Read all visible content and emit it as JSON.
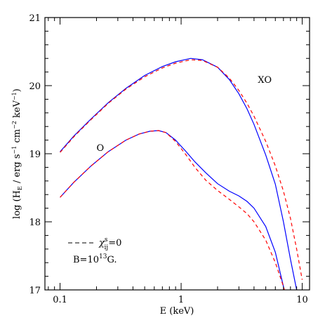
{
  "chart_data": {
    "type": "line",
    "xlabel": "E (keV)",
    "ylabel": {
      "base": "log (H",
      "sub": "E",
      "rest": " / erg s",
      "exp1": "−1",
      "mid": " cm",
      "exp2": "−2",
      "mid2": " keV",
      "exp3": "−1",
      "end": ")"
    },
    "xscale": "log",
    "xlim": [
      0.075,
      11.5
    ],
    "ylim": [
      17,
      21
    ],
    "x_ticks": [
      {
        "value": 0.1,
        "label": "0.1"
      },
      {
        "value": 1,
        "label": "1"
      },
      {
        "value": 10,
        "label": "10"
      }
    ],
    "y_ticks": [
      {
        "value": 17,
        "label": "17"
      },
      {
        "value": 18,
        "label": "18"
      },
      {
        "value": 19,
        "label": "19"
      },
      {
        "value": 20,
        "label": "20"
      },
      {
        "value": 21,
        "label": "21"
      }
    ],
    "curve_labels": [
      {
        "text": "XO",
        "x": 4.3,
        "y": 20.04
      },
      {
        "text": "O",
        "x": 0.2,
        "y": 19.04
      }
    ],
    "legend": {
      "dash_label": {
        "chi": "χ",
        "sup": "s",
        "sub": "ij",
        "rest": "=0"
      },
      "field_label": {
        "base": "B=10",
        "exp": "13",
        "end": "G."
      }
    },
    "series": [
      {
        "mode": "XO",
        "style": "solid",
        "color": "#0000ff",
        "x": [
          0.1,
          0.13,
          0.18,
          0.25,
          0.35,
          0.5,
          0.7,
          0.9,
          1.2,
          1.5,
          2.0,
          2.5,
          3.0,
          3.5,
          4.0,
          5.0,
          6.0,
          7.0,
          8.0,
          9.0
        ],
        "y": [
          19.03,
          19.26,
          19.51,
          19.75,
          19.96,
          20.15,
          20.28,
          20.35,
          20.4,
          20.38,
          20.27,
          20.09,
          19.88,
          19.66,
          19.43,
          18.98,
          18.55,
          18.0,
          17.45,
          17.0
        ]
      },
      {
        "mode": "XO",
        "style": "dashed",
        "color": "#ff0000",
        "x": [
          0.1,
          0.13,
          0.18,
          0.25,
          0.35,
          0.5,
          0.7,
          0.9,
          1.2,
          1.5,
          2.0,
          2.5,
          3.0,
          3.5,
          4.0,
          5.0,
          6.0,
          7.0,
          8.0,
          9.0,
          10.0
        ],
        "y": [
          19.02,
          19.25,
          19.5,
          19.74,
          19.95,
          20.13,
          20.26,
          20.33,
          20.38,
          20.37,
          20.27,
          20.11,
          19.93,
          19.74,
          19.55,
          19.18,
          18.82,
          18.45,
          18.05,
          17.6,
          17.15
        ]
      },
      {
        "mode": "O",
        "style": "solid",
        "color": "#0000ff",
        "x": [
          0.1,
          0.13,
          0.18,
          0.25,
          0.35,
          0.45,
          0.55,
          0.65,
          0.75,
          0.9,
          1.1,
          1.3,
          1.6,
          2.0,
          2.5,
          3.0,
          3.5,
          4.0,
          5.0,
          6.0,
          7.0,
          8.0
        ],
        "y": [
          18.36,
          18.58,
          18.82,
          19.03,
          19.2,
          19.29,
          19.33,
          19.34,
          19.31,
          19.2,
          19.03,
          18.88,
          18.72,
          18.56,
          18.45,
          18.38,
          18.3,
          18.2,
          17.93,
          17.55,
          17.05,
          16.6
        ]
      },
      {
        "mode": "O",
        "style": "dashed",
        "color": "#ff0000",
        "x": [
          0.1,
          0.13,
          0.18,
          0.25,
          0.35,
          0.45,
          0.55,
          0.65,
          0.75,
          0.9,
          1.1,
          1.3,
          1.6,
          2.0,
          2.5,
          3.0,
          3.5,
          4.0,
          5.0,
          6.0,
          7.0,
          8.0
        ],
        "y": [
          18.36,
          18.58,
          18.82,
          19.03,
          19.2,
          19.29,
          19.33,
          19.34,
          19.31,
          19.18,
          18.98,
          18.8,
          18.61,
          18.46,
          18.33,
          18.22,
          18.12,
          18.0,
          17.73,
          17.4,
          17.05,
          16.7
        ]
      }
    ]
  }
}
